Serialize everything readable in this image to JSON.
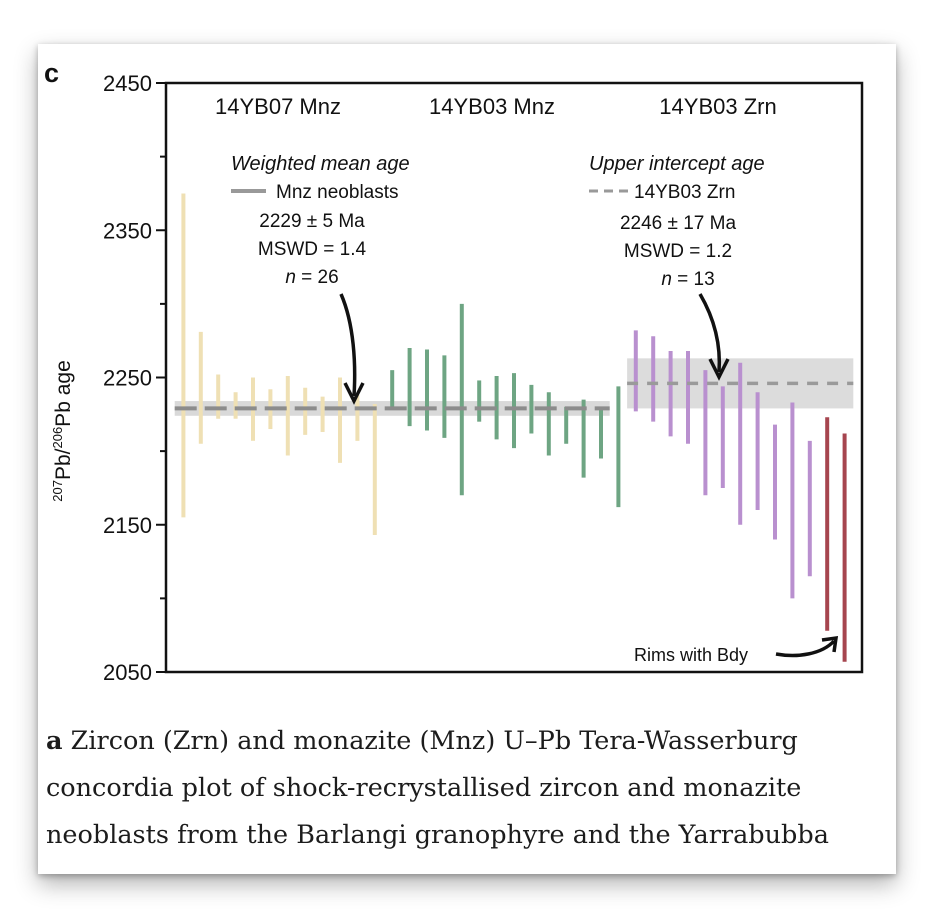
{
  "chart_data": {
    "type": "errorbar",
    "panel_label": "c",
    "ylabel_parts": [
      "207",
      "Pb/",
      "206",
      "Pb age"
    ],
    "ylim": [
      2050,
      2450
    ],
    "yticks": [
      2050,
      2150,
      2250,
      2350,
      2450
    ],
    "groups": [
      {
        "name": "14YB07 Mnz",
        "color": "#efe0b4"
      },
      {
        "name": "14YB03 Mnz",
        "color": "#6ea583"
      },
      {
        "name": "14YB03 Zrn",
        "color": "#b990cf"
      }
    ],
    "rims_color": "#a6454f",
    "bars": [
      {
        "x": 1,
        "lo": 2155,
        "hi": 2375,
        "group": 0
      },
      {
        "x": 2,
        "lo": 2205,
        "hi": 2281,
        "group": 0
      },
      {
        "x": 3,
        "lo": 2222,
        "hi": 2252,
        "group": 0
      },
      {
        "x": 4,
        "lo": 2222,
        "hi": 2240,
        "group": 0
      },
      {
        "x": 5,
        "lo": 2207,
        "hi": 2250,
        "group": 0
      },
      {
        "x": 6,
        "lo": 2215,
        "hi": 2242,
        "group": 0
      },
      {
        "x": 7,
        "lo": 2197,
        "hi": 2251,
        "group": 0
      },
      {
        "x": 8,
        "lo": 2211,
        "hi": 2243,
        "group": 0
      },
      {
        "x": 9,
        "lo": 2213,
        "hi": 2237,
        "group": 0
      },
      {
        "x": 10,
        "lo": 2192,
        "hi": 2250,
        "group": 0
      },
      {
        "x": 11,
        "lo": 2207,
        "hi": 2238,
        "group": 0
      },
      {
        "x": 12,
        "lo": 2143,
        "hi": 2232,
        "group": 0
      },
      {
        "x": 13,
        "lo": 2230,
        "hi": 2255,
        "group": 1
      },
      {
        "x": 14,
        "lo": 2217,
        "hi": 2270,
        "group": 1
      },
      {
        "x": 15,
        "lo": 2214,
        "hi": 2269,
        "group": 1
      },
      {
        "x": 16,
        "lo": 2209,
        "hi": 2265,
        "group": 1
      },
      {
        "x": 17,
        "lo": 2170,
        "hi": 2300,
        "group": 1
      },
      {
        "x": 18,
        "lo": 2220,
        "hi": 2248,
        "group": 1
      },
      {
        "x": 19,
        "lo": 2208,
        "hi": 2251,
        "group": 1
      },
      {
        "x": 20,
        "lo": 2202,
        "hi": 2253,
        "group": 1
      },
      {
        "x": 21,
        "lo": 2212,
        "hi": 2245,
        "group": 1
      },
      {
        "x": 22,
        "lo": 2197,
        "hi": 2240,
        "group": 1
      },
      {
        "x": 23,
        "lo": 2205,
        "hi": 2230,
        "group": 1
      },
      {
        "x": 24,
        "lo": 2182,
        "hi": 2235,
        "group": 1
      },
      {
        "x": 25,
        "lo": 2195,
        "hi": 2230,
        "group": 1
      },
      {
        "x": 26,
        "lo": 2162,
        "hi": 2244,
        "group": 1
      },
      {
        "x": 27,
        "lo": 2227,
        "hi": 2282,
        "group": 2
      },
      {
        "x": 28,
        "lo": 2220,
        "hi": 2278,
        "group": 2
      },
      {
        "x": 29,
        "lo": 2210,
        "hi": 2268,
        "group": 2
      },
      {
        "x": 30,
        "lo": 2205,
        "hi": 2268,
        "group": 2
      },
      {
        "x": 31,
        "lo": 2170,
        "hi": 2255,
        "group": 2
      },
      {
        "x": 32,
        "lo": 2175,
        "hi": 2244,
        "group": 2
      },
      {
        "x": 33,
        "lo": 2150,
        "hi": 2260,
        "group": 2
      },
      {
        "x": 34,
        "lo": 2160,
        "hi": 2240,
        "group": 2
      },
      {
        "x": 35,
        "lo": 2140,
        "hi": 2218,
        "group": 2
      },
      {
        "x": 36,
        "lo": 2100,
        "hi": 2233,
        "group": 2
      },
      {
        "x": 37,
        "lo": 2115,
        "hi": 2207,
        "group": 2
      },
      {
        "x": 38,
        "lo": 2078,
        "hi": 2223,
        "group": 3
      },
      {
        "x": 39,
        "lo": 2057,
        "hi": 2212,
        "group": 3
      }
    ],
    "xlim": [
      0,
      40
    ],
    "weighted_mean": {
      "title": "Weighted mean age",
      "legend": "Mnz neoblasts",
      "age": "2229 ± 5 Ma",
      "mswd": "MSWD = 1.4",
      "n_label": "n",
      "n_value": "= 26",
      "value": 2229,
      "err": 5,
      "x_range": [
        0.5,
        25.5
      ]
    },
    "upper_intercept": {
      "title": "Upper intercept age",
      "legend": "14YB03 Zrn",
      "age": "2246 ± 17 Ma",
      "mswd": "MSWD = 1.2",
      "n_label": "n",
      "n_value": "= 13",
      "value": 2246,
      "err": 17,
      "x_range": [
        26.5,
        39.5
      ]
    },
    "annotation": "Rims with Bdy"
  },
  "caption": {
    "bold": "a",
    "text": " Zircon (Zrn) and monazite (Mnz) U–Pb Tera-Wasserburg concordia plot of shock-recrystallised zircon and monazite neoblasts from the Barlangi granophyre and the Yarrabubba"
  }
}
